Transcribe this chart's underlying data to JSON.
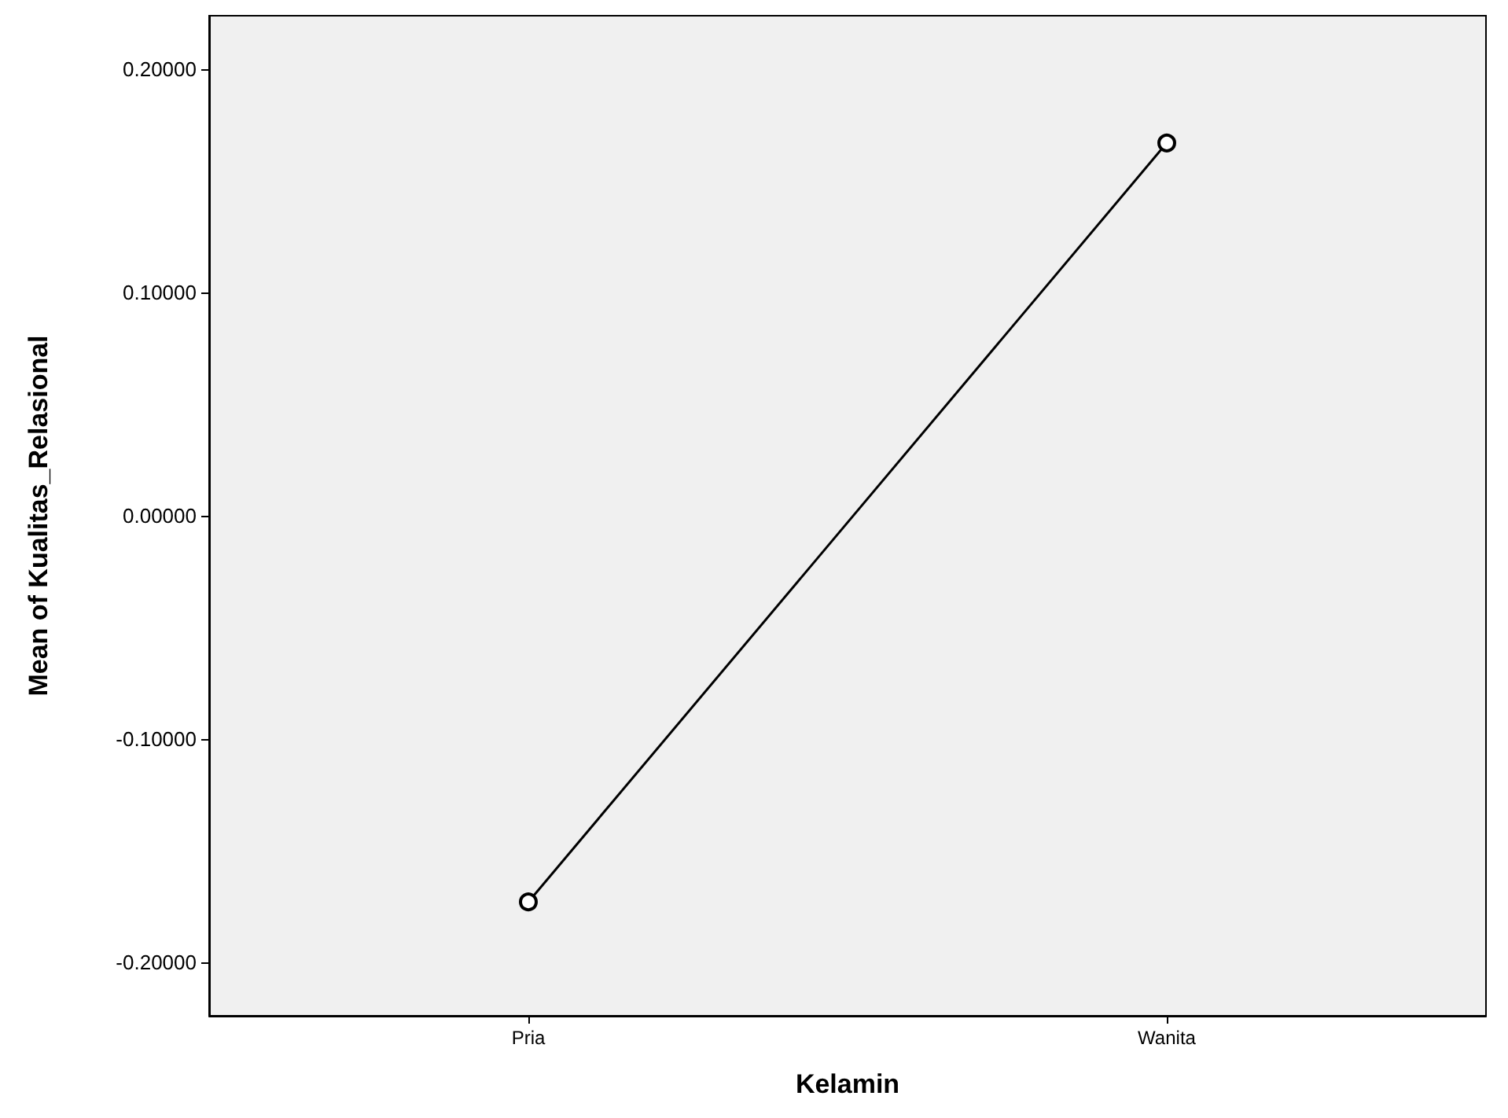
{
  "chart_data": {
    "type": "line",
    "xlabel": "Kelamin",
    "ylabel": "Mean of Kualitas_Relasional",
    "categories": [
      "Pria",
      "Wanita"
    ],
    "series": [
      {
        "color": "#000000",
        "values": [
          -0.173,
          0.167
        ]
      }
    ],
    "ylim": [
      -0.224,
      0.224
    ],
    "yticks": [
      {
        "value": -0.2,
        "label": "-0.20000"
      },
      {
        "value": -0.1,
        "label": "-0.10000"
      },
      {
        "value": 0,
        "label": "0.00000"
      },
      {
        "value": 0.1,
        "label": "0.10000"
      },
      {
        "value": 0.2,
        "label": "0.20000"
      }
    ],
    "grid": false,
    "marker": "circle",
    "line_style": "solid"
  }
}
